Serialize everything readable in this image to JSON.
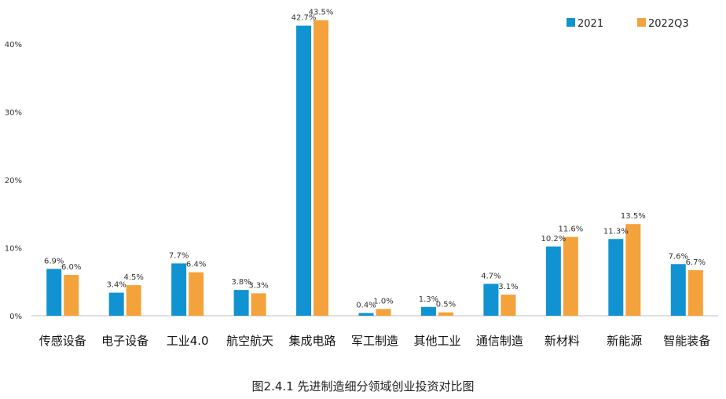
{
  "chart_data": {
    "type": "bar",
    "categories": [
      "传感设备",
      "电子设备",
      "工业4.0",
      "航空航天",
      "集成电路",
      "军工制造",
      "其他工业",
      "通信制造",
      "新材料",
      "新能源",
      "智能装备"
    ],
    "series": [
      {
        "name": "2021",
        "values": [
          6.9,
          3.4,
          7.7,
          3.8,
          42.7,
          0.4,
          1.3,
          4.7,
          10.2,
          11.3,
          7.6
        ],
        "labels": [
          "6.9%",
          "3.4%",
          "7.7%",
          "3.8%",
          "42.7%",
          "0.4%",
          "1.3%",
          "4.7%",
          "10.2%",
          "11.3%",
          "7.6%"
        ]
      },
      {
        "name": "2022Q3",
        "values": [
          6.0,
          4.5,
          6.4,
          3.3,
          43.5,
          1.0,
          0.5,
          3.1,
          11.6,
          13.5,
          6.7
        ],
        "labels": [
          "6.0%",
          "4.5%",
          "6.4%",
          "3.3%",
          "43.5%",
          "1.0%",
          "0.5%",
          "3.1%",
          "11.6%",
          "13.5%",
          "6.7%"
        ]
      }
    ],
    "yticks": [
      "0%",
      "10%",
      "20%",
      "30%",
      "40%"
    ],
    "ylim": [
      0,
      46
    ],
    "grid": false,
    "legend_position": "top-right"
  },
  "colors": {
    "2021": "#1193d1",
    "2022Q3": "#f4a23b"
  },
  "caption": "图2.4.1    先进制造细分领域创业投资对比图"
}
